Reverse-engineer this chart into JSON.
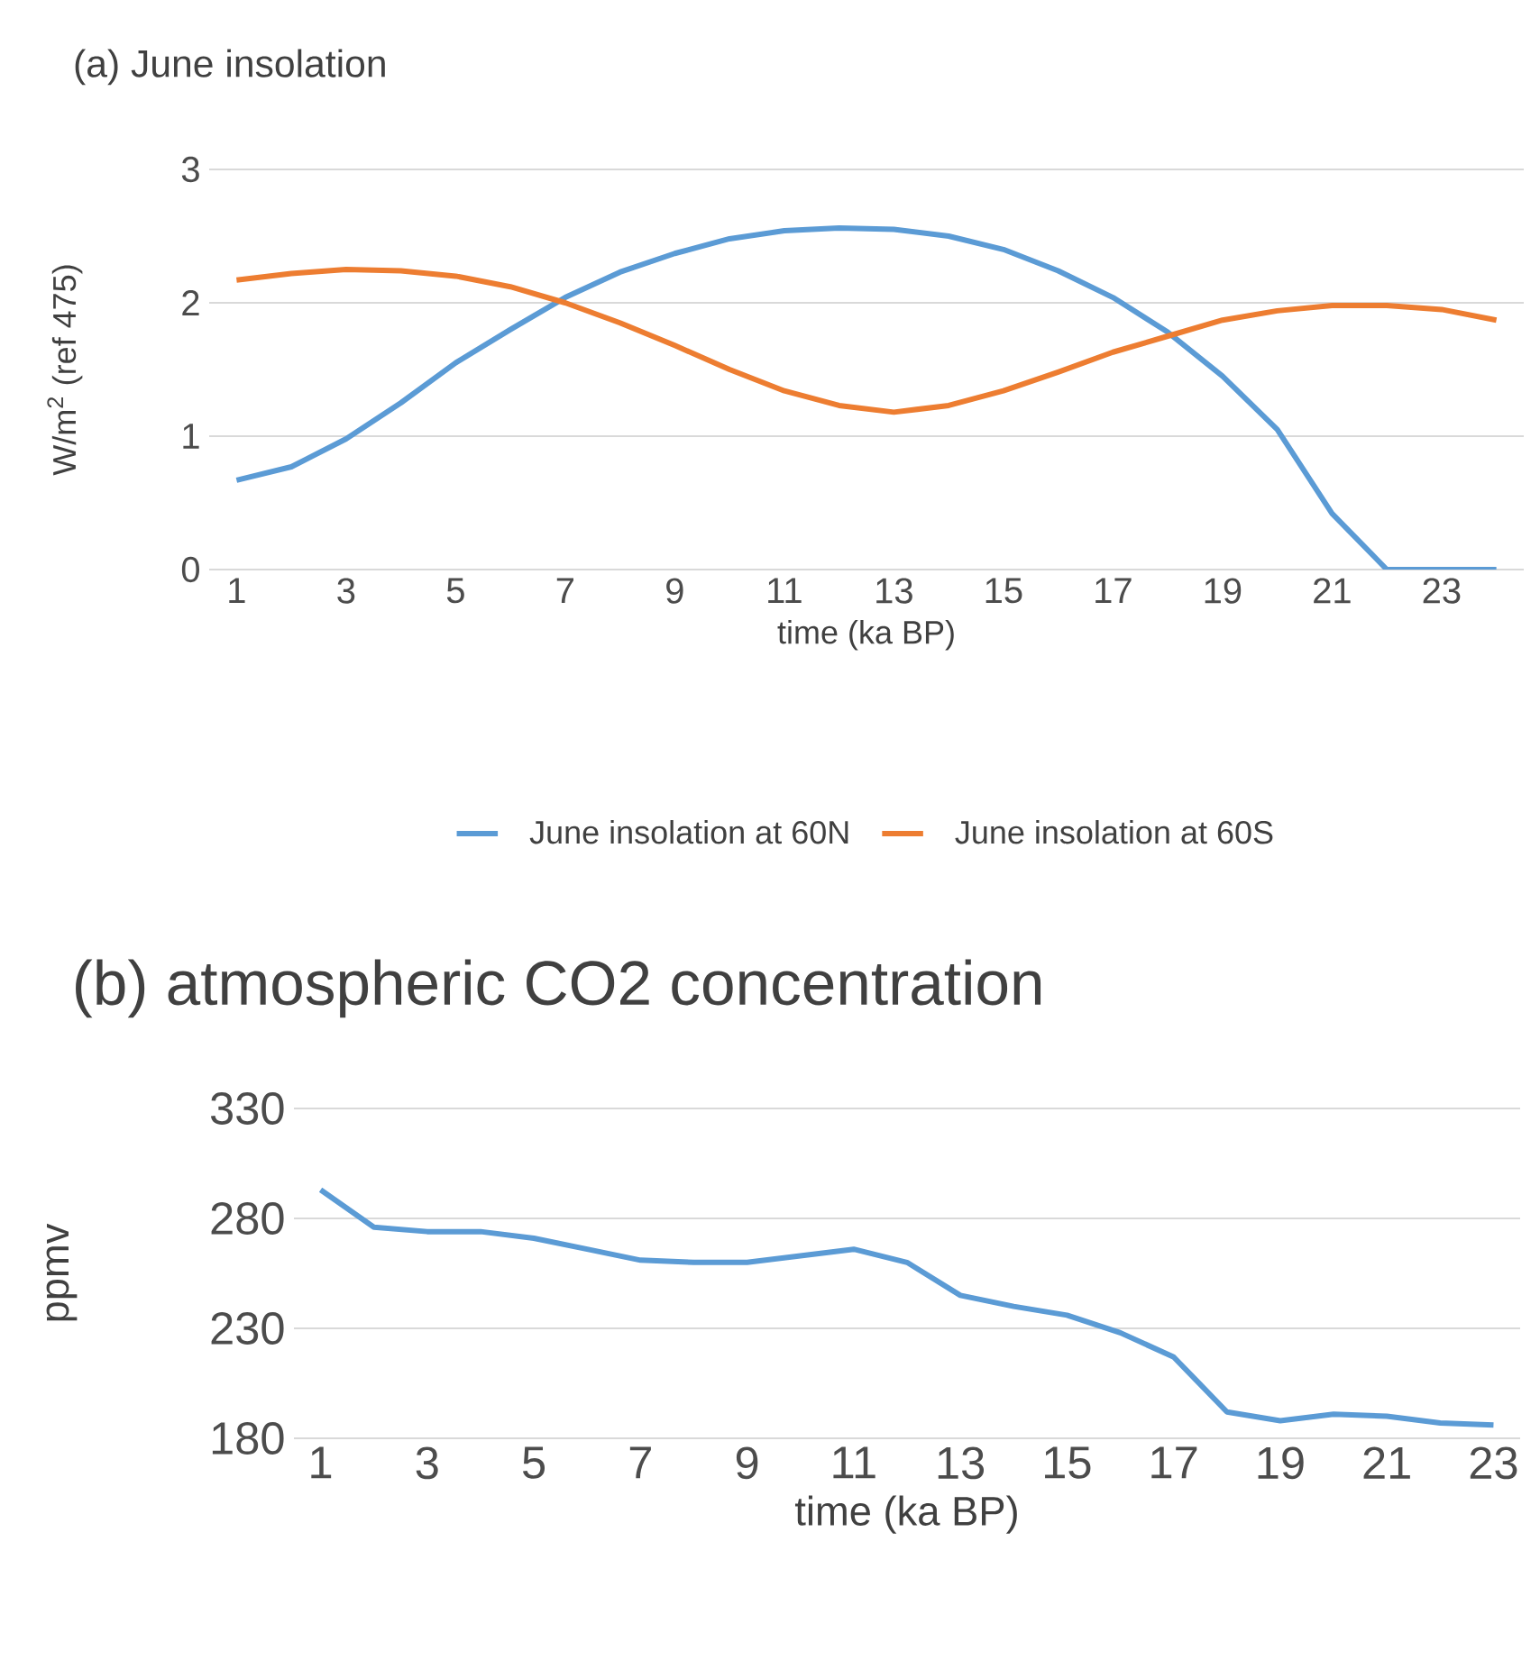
{
  "chart_data": [
    {
      "type": "line",
      "title": "(a) June insolation",
      "xlabel": "time (ka BP)",
      "ylabel": "W/m$^{2}$ (ref 475)",
      "x": [
        1,
        2,
        3,
        4,
        5,
        6,
        7,
        8,
        9,
        10,
        11,
        12,
        13,
        14,
        15,
        16,
        17,
        18,
        19,
        20,
        21,
        22,
        23,
        24
      ],
      "series": [
        {
          "name": "June insolation at 60N",
          "color": "#5b9bd5",
          "values": [
            0.67,
            0.77,
            0.98,
            1.25,
            1.55,
            1.8,
            2.04,
            2.23,
            2.37,
            2.48,
            2.54,
            2.56,
            2.55,
            2.5,
            2.4,
            2.24,
            2.04,
            1.78,
            1.45,
            1.05,
            0.42,
            0,
            0,
            0
          ]
        },
        {
          "name": "June insolation at 60S",
          "color": "#ed7d31",
          "values": [
            2.17,
            2.22,
            2.25,
            2.24,
            2.2,
            2.12,
            2.0,
            1.85,
            1.68,
            1.5,
            1.34,
            1.23,
            1.18,
            1.23,
            1.34,
            1.48,
            1.63,
            1.75,
            1.87,
            1.94,
            1.98,
            1.98,
            1.95,
            1.87
          ]
        }
      ],
      "xlim": [
        0.5,
        24.5
      ],
      "xticks": [
        1,
        3,
        5,
        7,
        9,
        11,
        13,
        15,
        17,
        19,
        21,
        23
      ],
      "ylim": [
        0,
        3
      ],
      "yticks": [
        0,
        1,
        2,
        3
      ],
      "grid": "y",
      "legend": "bottom",
      "marker": "none",
      "line_style": "solid"
    },
    {
      "type": "line",
      "title": "(b) atmospheric CO2 concentration",
      "xlabel": "time (ka BP)",
      "ylabel": "ppmv",
      "x": [
        1,
        2,
        3,
        4,
        5,
        6,
        7,
        8,
        9,
        10,
        11,
        12,
        13,
        14,
        15,
        16,
        17,
        18,
        19,
        20,
        21,
        22,
        23
      ],
      "series": [
        {
          "color": "#5b9bd5",
          "values": [
            293,
            276,
            274,
            274,
            271,
            266,
            261,
            260,
            260,
            263,
            266,
            260,
            245,
            240,
            236,
            228,
            217,
            192,
            188,
            191,
            190,
            187,
            186
          ]
        }
      ],
      "xlim": [
        0.5,
        23.5
      ],
      "xticks": [
        1,
        3,
        5,
        7,
        9,
        11,
        13,
        15,
        17,
        19,
        21,
        23
      ],
      "ylim": [
        180,
        330
      ],
      "yticks": [
        180,
        230,
        280,
        330
      ],
      "grid": "y",
      "legend": false,
      "marker": "none",
      "line_style": "solid"
    }
  ]
}
